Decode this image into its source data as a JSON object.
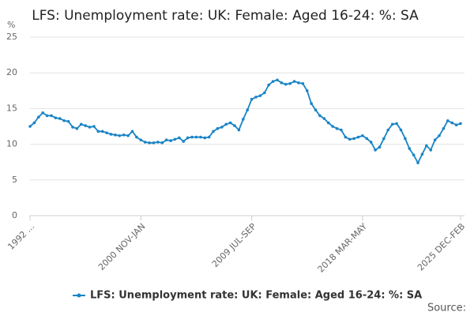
{
  "chart_data": {
    "type": "line",
    "title": "LFS: Unemployment rate: UK: Female: Aged 16-24: %: SA",
    "y_unit": "%",
    "source": "Source:",
    "categories": [
      "1992 ...",
      null,
      null,
      null,
      null,
      null,
      null,
      null,
      null,
      null,
      null,
      null,
      null,
      null,
      null,
      null,
      null,
      null,
      null,
      null,
      null,
      null,
      null,
      null,
      null,
      null,
      "2000 NOV-JAN",
      null,
      null,
      null,
      null,
      null,
      null,
      null,
      null,
      null,
      null,
      null,
      null,
      null,
      null,
      null,
      null,
      null,
      null,
      null,
      null,
      null,
      null,
      null,
      null,
      null,
      "2009 JUL-SEP",
      null,
      null,
      null,
      null,
      null,
      null,
      null,
      null,
      null,
      null,
      null,
      null,
      null,
      null,
      null,
      null,
      null,
      null,
      null,
      null,
      null,
      null,
      null,
      null,
      null,
      "2018 MAR-MAY",
      null,
      null,
      null,
      null,
      null,
      null,
      null,
      null,
      null,
      null,
      null,
      null,
      null,
      null,
      null,
      null,
      null,
      null,
      null,
      null,
      null,
      null,
      "2025 DEC-FEB"
    ],
    "series": [
      {
        "name": "LFS: Unemployment rate: UK: Female: Aged 16-24: %: SA",
        "color": "#1984c5",
        "values": [
          12.5,
          13,
          13.8,
          14.4,
          14,
          14,
          13.7,
          13.6,
          13.3,
          13.2,
          12.4,
          12.2,
          12.8,
          12.6,
          12.4,
          12.5,
          11.8,
          11.8,
          11.6,
          11.4,
          11.3,
          11.2,
          11.3,
          11.2,
          11.8,
          11,
          10.6,
          10.3,
          10.2,
          10.2,
          10.3,
          10.2,
          10.6,
          10.5,
          10.7,
          10.9,
          10.4,
          10.9,
          11,
          11,
          11,
          10.9,
          11,
          11.8,
          12.2,
          12.4,
          12.8,
          13,
          12.6,
          12,
          13.5,
          14.8,
          16.3,
          16.6,
          16.8,
          17.2,
          18.3,
          18.8,
          19,
          18.6,
          18.4,
          18.5,
          18.8,
          18.6,
          18.5,
          17.5,
          15.7,
          14.8,
          14,
          13.6,
          13,
          12.5,
          12.2,
          12,
          11,
          10.7,
          10.8,
          11,
          11.2,
          10.8,
          10.3,
          9.2,
          9.6,
          10.8,
          12,
          12.8,
          12.9,
          12,
          10.8,
          9.4,
          8.5,
          7.4,
          8.6,
          9.8,
          9.2,
          10.6,
          11.2,
          12.2,
          13.3,
          13,
          12.7,
          12.9
        ]
      }
    ],
    "ylim": [
      0,
      25
    ],
    "yticks": [
      0,
      5,
      10,
      15,
      20,
      25
    ],
    "grid": true
  }
}
